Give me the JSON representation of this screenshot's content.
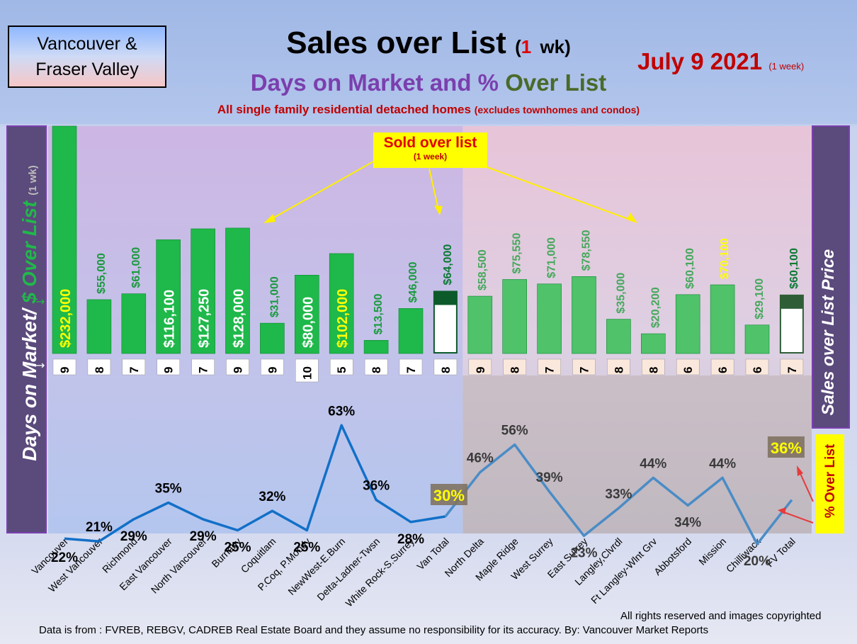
{
  "header": {
    "region_line1": "Vancouver &",
    "region_line2": "Fraser Valley",
    "title_main": "Sales over List",
    "title_open": "(",
    "title_num": "1",
    "title_rest": "wk)",
    "subtitle_a": "Days on Market and % ",
    "subtitle_b": "Over List",
    "description": "All single family residential detached homes",
    "description_small": "(excludes townhomes and condos)",
    "date": "July 9  2021",
    "date_note": "(1 week)"
  },
  "axes": {
    "left_label_a": "Days on Market/ ",
    "left_label_b": "$ Over List",
    "left_label_c": "(1 wk)",
    "right_label": "Sales over List Price",
    "pct_label": "% Over List"
  },
  "callout": {
    "title": "Sold over list",
    "sub": "(1 week)"
  },
  "colors": {
    "bar": "#1fb84a",
    "bar_fv": "#4fc26a",
    "line": "#1270c8",
    "line_fv": "#4a8cc6",
    "total_bg": "#ffffff",
    "yellow": "#ffff00"
  },
  "chart_data": {
    "type": "bar",
    "categories": [
      "Vancouver",
      "West Vancouver",
      "Richmond",
      "East Vancouver",
      "North Vancouver",
      "Burnaby",
      "Coquitlam",
      "P.Coq, P.Moody",
      "NewWest-E.Burn",
      "Delta-Ladner-Twsn",
      "White Rock-S.Surrey",
      "Van Total",
      "North Delta",
      "Maple Ridge",
      "West Surrey",
      "East Surrey",
      "Langley,Clvrdl",
      "Ft Langley-Wlnt Grv",
      "Abbotsford",
      "Mission",
      "Chilliwack",
      "FV Total"
    ],
    "series": [
      {
        "values": [
          232000,
          55000,
          61000,
          116100,
          127250,
          128000,
          31000,
          80000,
          102000,
          13500,
          46000,
          64000,
          58500,
          75550,
          71000,
          78550,
          35000,
          20200,
          60100,
          70100,
          29100,
          60100
        ]
      },
      {
        "values": [
          9,
          8,
          7,
          9,
          7,
          9,
          9,
          10,
          5,
          8,
          7,
          8,
          9,
          8,
          7,
          7,
          8,
          8,
          6,
          6,
          6,
          7
        ]
      },
      {
        "values": [
          22,
          21,
          29,
          35,
          29,
          25,
          32,
          25,
          63,
          36,
          28,
          30,
          46,
          56,
          39,
          23,
          33,
          44,
          34,
          44,
          20,
          36
        ]
      }
    ],
    "bar_labels": [
      "$232,000",
      "$55,000",
      "$61,000",
      "$116,100",
      "$127,250",
      "$128,000",
      "$31,000",
      "$80,000",
      "$102,000",
      "$13,500",
      "$46,000",
      "$64,000",
      "$58,500",
      "$75,550",
      "$71,000",
      "$78,550",
      "$35,000",
      "$20,200",
      "$60,100",
      "$70,100",
      "$29,100",
      "$60,100"
    ],
    "dom_labels": [
      "9",
      "8",
      "7",
      "9",
      "7",
      "9",
      "9",
      "10",
      "5",
      "8",
      "7",
      "8",
      "9",
      "8",
      "7",
      "7",
      "8",
      "8",
      "6",
      "6",
      "6",
      "7"
    ],
    "pct_labels": [
      "22%",
      "21%",
      "29%",
      "35%",
      "29%",
      "25%",
      "32%",
      "25%",
      "63%",
      "36%",
      "28%",
      "30%",
      "46%",
      "56%",
      "39%",
      "23%",
      "33%",
      "44%",
      "34%",
      "44%",
      "20%",
      "36%"
    ],
    "highlight_yellow": [
      "Vancouver",
      "NewWest-E.Burn",
      "Mission"
    ]
  },
  "footer": {
    "rights": "All rights reserved and  images copyrighted",
    "source": "Data is from : FVREB, REBGV, CADREB Real Estate Board and they assume no responsibility for its accuracy. By: Vancouver Market Reports"
  }
}
